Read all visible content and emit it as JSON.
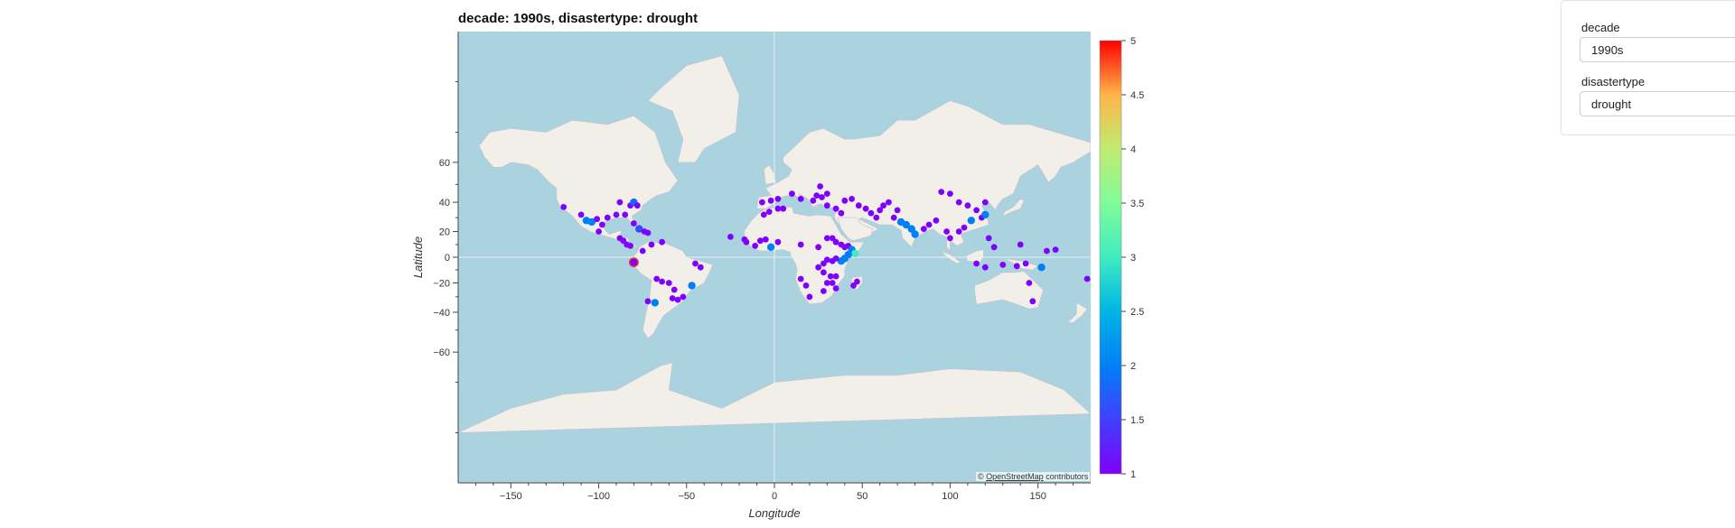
{
  "title": "decade: 1990s, disastertype: drought",
  "widgets": {
    "decade": {
      "label": "decade",
      "value": "1990s"
    },
    "disastertype": {
      "label": "disastertype",
      "value": "drought"
    }
  },
  "attribution": {
    "prefix": "©",
    "link_text": "OpenStreetMap",
    "suffix": "contributors"
  },
  "colors": {
    "ocean": "#aad3df",
    "land": "#f2efe9",
    "border": "#c9bfd0",
    "highlight_stroke": "#e03030"
  },
  "chart_data": {
    "type": "scatter",
    "title": "decade: 1990s, disastertype: drought",
    "xlabel": "Longitude",
    "ylabel": "Latitude",
    "xlim": [
      -180,
      180
    ],
    "ylim": [
      -85,
      85
    ],
    "xticks": [
      -150,
      -100,
      -50,
      0,
      50,
      100,
      150
    ],
    "yticks": [
      -60,
      -40,
      -20,
      0,
      20,
      40,
      60
    ],
    "colorbar": {
      "ticks": [
        "1",
        "1.5",
        "2",
        "2.5",
        "3",
        "3.5",
        "4",
        "4.5",
        "5"
      ],
      "min": 1,
      "max": 5,
      "colormap": "rainbow"
    },
    "points": [
      {
        "lon": -120,
        "lat": 37,
        "v": 1
      },
      {
        "lon": -110,
        "lat": 32,
        "v": 1
      },
      {
        "lon": -107,
        "lat": 28,
        "v": 2
      },
      {
        "lon": -104,
        "lat": 27,
        "v": 2
      },
      {
        "lon": -101,
        "lat": 29,
        "v": 1
      },
      {
        "lon": -98,
        "lat": 25,
        "v": 1
      },
      {
        "lon": -100,
        "lat": 20,
        "v": 1
      },
      {
        "lon": -95,
        "lat": 30,
        "v": 1
      },
      {
        "lon": -90,
        "lat": 32,
        "v": 1
      },
      {
        "lon": -85,
        "lat": 32,
        "v": 1
      },
      {
        "lon": -88,
        "lat": 40,
        "v": 1
      },
      {
        "lon": -82,
        "lat": 38,
        "v": 1
      },
      {
        "lon": -80,
        "lat": 40,
        "v": 1.8
      },
      {
        "lon": -78,
        "lat": 38,
        "v": 1
      },
      {
        "lon": -80,
        "lat": 26,
        "v": 1
      },
      {
        "lon": -77,
        "lat": 22,
        "v": 1.6
      },
      {
        "lon": -74,
        "lat": 20,
        "v": 1
      },
      {
        "lon": -72,
        "lat": 19,
        "v": 1
      },
      {
        "lon": -88,
        "lat": 15,
        "v": 1
      },
      {
        "lon": -86,
        "lat": 13,
        "v": 1
      },
      {
        "lon": -84,
        "lat": 10,
        "v": 1
      },
      {
        "lon": -82,
        "lat": 9,
        "v": 1
      },
      {
        "lon": -75,
        "lat": 5,
        "v": 1
      },
      {
        "lon": -70,
        "lat": 10,
        "v": 1
      },
      {
        "lon": -64,
        "lat": 12,
        "v": 1
      },
      {
        "lon": -80,
        "lat": -4,
        "v": 1,
        "highlight": true
      },
      {
        "lon": -67,
        "lat": -17,
        "v": 1
      },
      {
        "lon": -64,
        "lat": -19,
        "v": 1
      },
      {
        "lon": -60,
        "lat": -20,
        "v": 1
      },
      {
        "lon": -57,
        "lat": -25,
        "v": 1
      },
      {
        "lon": -55,
        "lat": -32,
        "v": 1
      },
      {
        "lon": -58,
        "lat": -31,
        "v": 1
      },
      {
        "lon": -52,
        "lat": -30,
        "v": 1
      },
      {
        "lon": -47,
        "lat": -22,
        "v": 2
      },
      {
        "lon": -42,
        "lat": -8,
        "v": 1
      },
      {
        "lon": -45,
        "lat": -5,
        "v": 1
      },
      {
        "lon": -68,
        "lat": -34,
        "v": 2
      },
      {
        "lon": -72,
        "lat": -33,
        "v": 1
      },
      {
        "lon": -25,
        "lat": 16,
        "v": 1
      },
      {
        "lon": -17,
        "lat": 14,
        "v": 1
      },
      {
        "lon": -16,
        "lat": 12,
        "v": 1
      },
      {
        "lon": -11,
        "lat": 9,
        "v": 1
      },
      {
        "lon": -8,
        "lat": 13,
        "v": 1
      },
      {
        "lon": -5,
        "lat": 14,
        "v": 1
      },
      {
        "lon": -6,
        "lat": 32,
        "v": 1
      },
      {
        "lon": -3,
        "lat": 34,
        "v": 1
      },
      {
        "lon": 2,
        "lat": 36,
        "v": 1
      },
      {
        "lon": 5,
        "lat": 36,
        "v": 1
      },
      {
        "lon": -2,
        "lat": 8,
        "v": 2
      },
      {
        "lon": 2,
        "lat": 12,
        "v": 1
      },
      {
        "lon": -7,
        "lat": 40,
        "v": 1
      },
      {
        "lon": -2,
        "lat": 41,
        "v": 1
      },
      {
        "lon": 2,
        "lat": 42,
        "v": 1
      },
      {
        "lon": 10,
        "lat": 45,
        "v": 1
      },
      {
        "lon": 15,
        "lat": 42,
        "v": 1
      },
      {
        "lon": 22,
        "lat": 41,
        "v": 1
      },
      {
        "lon": 24,
        "lat": 44,
        "v": 1
      },
      {
        "lon": 27,
        "lat": 43,
        "v": 1
      },
      {
        "lon": 30,
        "lat": 45,
        "v": 1
      },
      {
        "lon": 26,
        "lat": 49,
        "v": 1
      },
      {
        "lon": 30,
        "lat": 38,
        "v": 1
      },
      {
        "lon": 35,
        "lat": 36,
        "v": 1
      },
      {
        "lon": 38,
        "lat": 33,
        "v": 1
      },
      {
        "lon": 40,
        "lat": 41,
        "v": 1
      },
      {
        "lon": 44,
        "lat": 42,
        "v": 1
      },
      {
        "lon": 48,
        "lat": 38,
        "v": 1
      },
      {
        "lon": 52,
        "lat": 36,
        "v": 1
      },
      {
        "lon": 55,
        "lat": 33,
        "v": 1
      },
      {
        "lon": 58,
        "lat": 30,
        "v": 1
      },
      {
        "lon": 60,
        "lat": 35,
        "v": 1
      },
      {
        "lon": 62,
        "lat": 38,
        "v": 1
      },
      {
        "lon": 65,
        "lat": 40,
        "v": 1
      },
      {
        "lon": 70,
        "lat": 35,
        "v": 1
      },
      {
        "lon": 68,
        "lat": 30,
        "v": 1
      },
      {
        "lon": 72,
        "lat": 27,
        "v": 2
      },
      {
        "lon": 75,
        "lat": 25,
        "v": 2
      },
      {
        "lon": 78,
        "lat": 22,
        "v": 2
      },
      {
        "lon": 80,
        "lat": 18,
        "v": 2
      },
      {
        "lon": 85,
        "lat": 22,
        "v": 1
      },
      {
        "lon": 88,
        "lat": 25,
        "v": 1
      },
      {
        "lon": 92,
        "lat": 28,
        "v": 1
      },
      {
        "lon": 95,
        "lat": 46,
        "v": 1
      },
      {
        "lon": 100,
        "lat": 45,
        "v": 1
      },
      {
        "lon": 105,
        "lat": 40,
        "v": 1
      },
      {
        "lon": 110,
        "lat": 38,
        "v": 1
      },
      {
        "lon": 115,
        "lat": 35,
        "v": 1
      },
      {
        "lon": 112,
        "lat": 28,
        "v": 2
      },
      {
        "lon": 118,
        "lat": 30,
        "v": 1
      },
      {
        "lon": 120,
        "lat": 32,
        "v": 2
      },
      {
        "lon": 108,
        "lat": 23,
        "v": 1
      },
      {
        "lon": 105,
        "lat": 20,
        "v": 1
      },
      {
        "lon": 100,
        "lat": 15,
        "v": 1
      },
      {
        "lon": 98,
        "lat": 20,
        "v": 1
      },
      {
        "lon": 122,
        "lat": 15,
        "v": 1
      },
      {
        "lon": 125,
        "lat": 8,
        "v": 1
      },
      {
        "lon": 120,
        "lat": 40,
        "v": 1
      },
      {
        "lon": 30,
        "lat": 15,
        "v": 1
      },
      {
        "lon": 33,
        "lat": 15,
        "v": 1
      },
      {
        "lon": 35,
        "lat": 12,
        "v": 1
      },
      {
        "lon": 38,
        "lat": 10,
        "v": 1
      },
      {
        "lon": 40,
        "lat": 8,
        "v": 1
      },
      {
        "lon": 42,
        "lat": 9,
        "v": 1
      },
      {
        "lon": 44,
        "lat": 6,
        "v": 2
      },
      {
        "lon": 46,
        "lat": 3,
        "v": 3
      },
      {
        "lon": 42,
        "lat": 2,
        "v": 2
      },
      {
        "lon": 40,
        "lat": -1,
        "v": 2
      },
      {
        "lon": 38,
        "lat": -3,
        "v": 2
      },
      {
        "lon": 35,
        "lat": -1,
        "v": 1
      },
      {
        "lon": 33,
        "lat": -3,
        "v": 1
      },
      {
        "lon": 30,
        "lat": -2,
        "v": 1
      },
      {
        "lon": 28,
        "lat": -5,
        "v": 1
      },
      {
        "lon": 25,
        "lat": -8,
        "v": 1
      },
      {
        "lon": 28,
        "lat": -12,
        "v": 1
      },
      {
        "lon": 32,
        "lat": -15,
        "v": 1
      },
      {
        "lon": 35,
        "lat": -15,
        "v": 1
      },
      {
        "lon": 33,
        "lat": -20,
        "v": 1
      },
      {
        "lon": 30,
        "lat": -20,
        "v": 1
      },
      {
        "lon": 35,
        "lat": -24,
        "v": 1
      },
      {
        "lon": 28,
        "lat": -26,
        "v": 1
      },
      {
        "lon": 20,
        "lat": -30,
        "v": 1
      },
      {
        "lon": 18,
        "lat": -22,
        "v": 1
      },
      {
        "lon": 15,
        "lat": -17,
        "v": 1
      },
      {
        "lon": 47,
        "lat": -19,
        "v": 1
      },
      {
        "lon": 45,
        "lat": -22,
        "v": 1
      },
      {
        "lon": 25,
        "lat": 8,
        "v": 1
      },
      {
        "lon": 15,
        "lat": 10,
        "v": 1
      },
      {
        "lon": 115,
        "lat": -5,
        "v": 1
      },
      {
        "lon": 120,
        "lat": -8,
        "v": 1
      },
      {
        "lon": 130,
        "lat": -6,
        "v": 1
      },
      {
        "lon": 138,
        "lat": -7,
        "v": 1
      },
      {
        "lon": 143,
        "lat": -5,
        "v": 1
      },
      {
        "lon": 145,
        "lat": -20,
        "v": 1
      },
      {
        "lon": 147,
        "lat": -33,
        "v": 1
      },
      {
        "lon": 152,
        "lat": -8,
        "v": 2
      },
      {
        "lon": 155,
        "lat": 5,
        "v": 1
      },
      {
        "lon": 160,
        "lat": 6,
        "v": 1
      },
      {
        "lon": 178,
        "lat": -17,
        "v": 1
      },
      {
        "lon": 140,
        "lat": 10,
        "v": 1
      }
    ]
  }
}
